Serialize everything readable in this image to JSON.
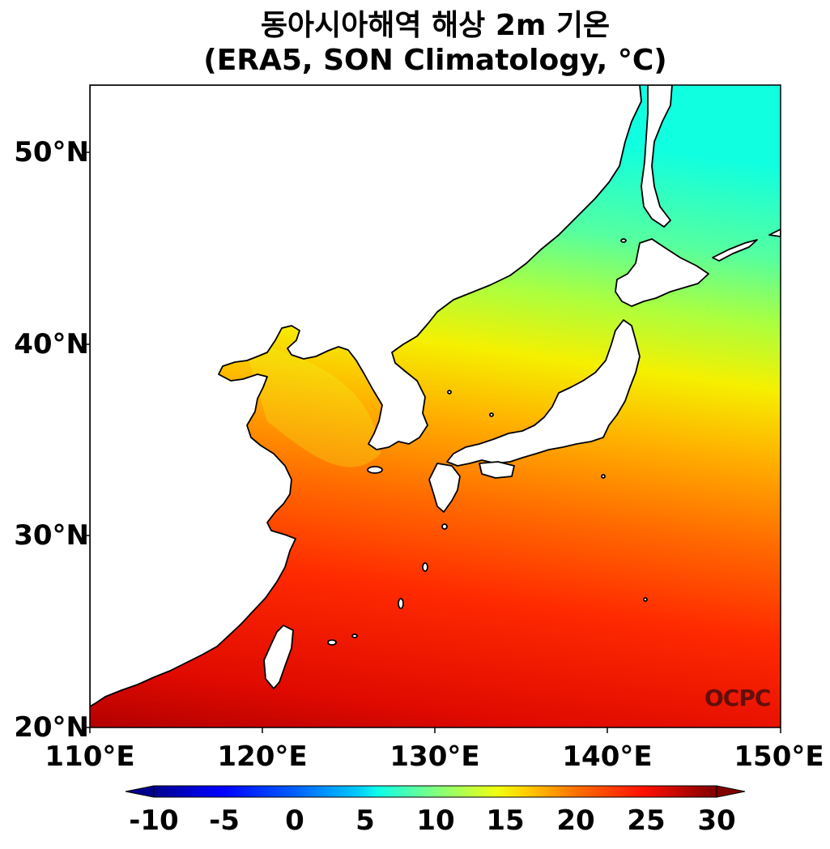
{
  "title": {
    "line1": "동아시아해역 해상 2m 기온",
    "line2": "(ERA5, SON Climatology, °C)"
  },
  "map": {
    "lon_range": [
      110,
      150
    ],
    "lat_range": [
      20,
      53.5
    ],
    "lat_ticks": [
      "50°N",
      "40°N",
      "30°N",
      "20°N"
    ],
    "lon_ticks": [
      "110°E",
      "120°E",
      "130°E",
      "140°E",
      "150°E"
    ],
    "watermark": "OCPC",
    "land_color": "#ffffff",
    "coast_color": "#000000"
  },
  "colorbar": {
    "min": -10,
    "max": 30,
    "extend": "both",
    "colormap": "jet",
    "tick_labels": [
      "-10",
      "-5",
      "0",
      "5",
      "10",
      "15",
      "20",
      "25",
      "30"
    ]
  },
  "field": {
    "variable": "2m air temperature over sea",
    "units": "°C",
    "approx_range": [
      8,
      29
    ]
  }
}
